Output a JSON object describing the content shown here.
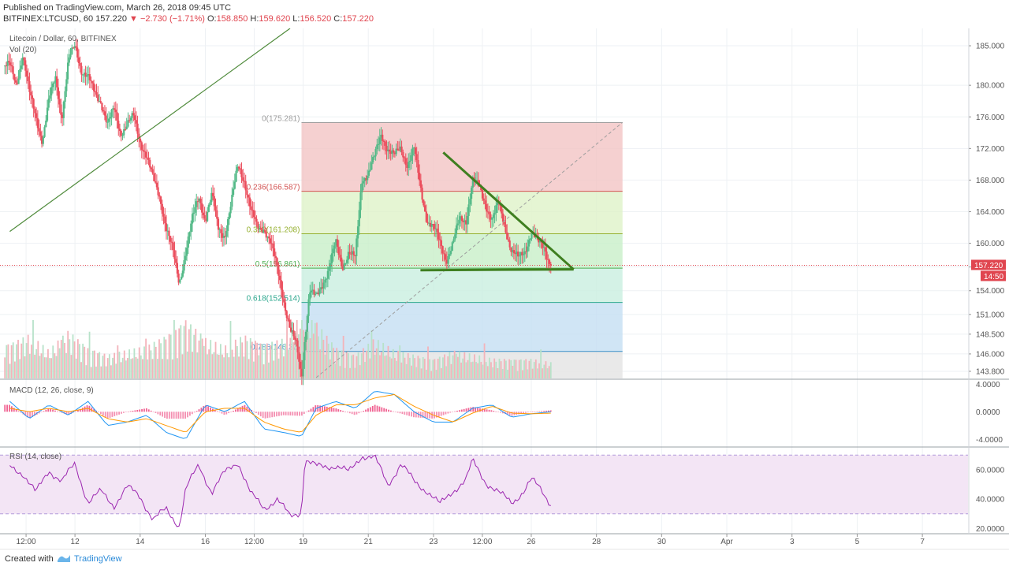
{
  "header": {
    "publish": "Published on TradingView.com, March 26, 2018 09:45 UTC",
    "symbol": "BITFINEX:LTCUSD, 60",
    "last": "157.220",
    "change_arrow": "▼",
    "change": "−2.730 (−1.71%)",
    "o_label": "O:",
    "o_value": "158.850",
    "h_label": "H:",
    "h_value": "159.620",
    "l_label": "L:",
    "l_value": "156.520",
    "c_label": "C:",
    "c_value": "157.220"
  },
  "footer": {
    "created": "Created with",
    "brand": "TradingView",
    "logo_icon": "tradingview-logo-icon"
  },
  "chart_data": {
    "type": "candlestick",
    "legend": {
      "main": "Litecoin / Dollar, 60, BITFINEX",
      "volume": "Vol (20)",
      "macd": "MACD (12, 26, close, 9)",
      "rsi": "RSI (14, close)"
    },
    "price_axis_ticks": [
      "185.000",
      "180.000",
      "176.000",
      "172.000",
      "168.000",
      "164.000",
      "160.000",
      "157.000",
      "154.000",
      "151.000",
      "148.500",
      "146.000",
      "143.800"
    ],
    "price_range": [
      142.9,
      187.2
    ],
    "last_price_label": "157.220",
    "countdown_label": "14:50",
    "time_axis_labels": [
      {
        "label": "12:00",
        "day": 10.5
      },
      {
        "label": "12",
        "day": 12
      },
      {
        "label": "14",
        "day": 14
      },
      {
        "label": "16",
        "day": 16
      },
      {
        "label": "12:00",
        "day": 17.5
      },
      {
        "label": "19",
        "day": 19
      },
      {
        "label": "21",
        "day": 21
      },
      {
        "label": "23",
        "day": 23
      },
      {
        "label": "12:00",
        "day": 24.5
      },
      {
        "label": "26",
        "day": 26
      },
      {
        "label": "28",
        "day": 28
      },
      {
        "label": "30",
        "day": 30
      },
      {
        "label": "Apr",
        "day": 32
      },
      {
        "label": "3",
        "day": 34
      },
      {
        "label": "5",
        "day": 36
      },
      {
        "label": "7",
        "day": 38
      }
    ],
    "price_path": [
      [
        10.0,
        182.5
      ],
      [
        10.2,
        180
      ],
      [
        10.4,
        184
      ],
      [
        10.6,
        179
      ],
      [
        10.8,
        176
      ],
      [
        11.0,
        173
      ],
      [
        11.2,
        178
      ],
      [
        11.4,
        181
      ],
      [
        11.6,
        176
      ],
      [
        11.8,
        183
      ],
      [
        12.0,
        185
      ],
      [
        12.2,
        182
      ],
      [
        12.4,
        181
      ],
      [
        12.6,
        179
      ],
      [
        12.8,
        178
      ],
      [
        13.0,
        175
      ],
      [
        13.2,
        177
      ],
      [
        13.4,
        174
      ],
      [
        13.6,
        175
      ],
      [
        13.8,
        176
      ],
      [
        14.0,
        173
      ],
      [
        14.2,
        171
      ],
      [
        14.4,
        168
      ],
      [
        14.6,
        166
      ],
      [
        14.8,
        162
      ],
      [
        15.0,
        159
      ],
      [
        15.2,
        155
      ],
      [
        15.4,
        159
      ],
      [
        15.6,
        163
      ],
      [
        15.8,
        166
      ],
      [
        16.0,
        163
      ],
      [
        16.2,
        166
      ],
      [
        16.4,
        162
      ],
      [
        16.6,
        161
      ],
      [
        16.8,
        165
      ],
      [
        17.0,
        170
      ],
      [
        17.2,
        168
      ],
      [
        17.4,
        164
      ],
      [
        17.6,
        162
      ],
      [
        17.8,
        162
      ],
      [
        18.0,
        160
      ],
      [
        18.2,
        157
      ],
      [
        18.4,
        153
      ],
      [
        18.6,
        149
      ],
      [
        18.8,
        147
      ],
      [
        18.95,
        143.2
      ],
      [
        19.05,
        148
      ],
      [
        19.2,
        154
      ],
      [
        19.4,
        153
      ],
      [
        19.6,
        155
      ],
      [
        19.8,
        157
      ],
      [
        20.0,
        160
      ],
      [
        20.2,
        157
      ],
      [
        20.4,
        159
      ],
      [
        20.6,
        158
      ],
      [
        20.8,
        168
      ],
      [
        21.0,
        169
      ],
      [
        21.2,
        171
      ],
      [
        21.4,
        173.8
      ],
      [
        21.6,
        172
      ],
      [
        21.8,
        171
      ],
      [
        22.0,
        172
      ],
      [
        22.2,
        170
      ],
      [
        22.4,
        172
      ],
      [
        22.6,
        167
      ],
      [
        22.8,
        163
      ],
      [
        23.0,
        162
      ],
      [
        23.2,
        160
      ],
      [
        23.4,
        158
      ],
      [
        23.6,
        160
      ],
      [
        23.8,
        163
      ],
      [
        24.0,
        163
      ],
      [
        24.2,
        168
      ],
      [
        24.4,
        167
      ],
      [
        24.6,
        165
      ],
      [
        24.8,
        163
      ],
      [
        25.0,
        165
      ],
      [
        25.2,
        162
      ],
      [
        25.4,
        159
      ],
      [
        25.6,
        158
      ],
      [
        25.8,
        159
      ],
      [
        26.0,
        161.5
      ],
      [
        26.2,
        160
      ],
      [
        26.4,
        159.5
      ],
      [
        26.6,
        157.22
      ]
    ],
    "volume_path": [
      [
        10.0,
        0.45
      ],
      [
        10.6,
        0.55
      ],
      [
        11.2,
        0.35
      ],
      [
        11.8,
        0.6
      ],
      [
        12.4,
        0.4
      ],
      [
        13.0,
        0.3
      ],
      [
        13.6,
        0.35
      ],
      [
        14.2,
        0.4
      ],
      [
        14.8,
        0.55
      ],
      [
        15.4,
        0.75
      ],
      [
        16.0,
        0.5
      ],
      [
        16.6,
        0.4
      ],
      [
        17.2,
        0.55
      ],
      [
        17.8,
        0.45
      ],
      [
        18.4,
        0.5
      ],
      [
        18.95,
        0.9
      ],
      [
        19.4,
        0.7
      ],
      [
        20.0,
        0.4
      ],
      [
        20.6,
        0.3
      ],
      [
        21.2,
        0.5
      ],
      [
        21.8,
        0.35
      ],
      [
        22.4,
        0.3
      ],
      [
        23.0,
        0.25
      ],
      [
        23.6,
        0.35
      ],
      [
        24.2,
        0.3
      ],
      [
        24.8,
        0.25
      ],
      [
        25.4,
        0.25
      ],
      [
        26.0,
        0.25
      ],
      [
        26.6,
        0.2
      ]
    ],
    "fibonacci": {
      "start_day": 18.95,
      "end_day": 28.8,
      "levels": [
        {
          "ratio": "0",
          "value": "(175.281)",
          "price": 175.281,
          "line": "#9e9e9e",
          "fill": "#f3c4c4"
        },
        {
          "ratio": "0.236",
          "value": "(166.587)",
          "price": 166.587,
          "line": "#d35454",
          "fill": "#dff2c8"
        },
        {
          "ratio": "0.382",
          "value": "(161.208)",
          "price": 161.208,
          "line": "#95b02f",
          "fill": "#c8efc8"
        },
        {
          "ratio": "0.5",
          "value": "(156.861)",
          "price": 156.861,
          "line": "#4caf50",
          "fill": "#c9efe0"
        },
        {
          "ratio": "0.618",
          "value": "(152.514)",
          "price": 152.514,
          "line": "#2ea88f",
          "fill": "#c4def2"
        },
        {
          "ratio": "0.786",
          "value": "(146.32)",
          "price": 146.32,
          "line": "#3b8fc8",
          "fill": "#e4e4e4"
        }
      ]
    },
    "trendlines": [
      {
        "name": "rising-channel-line",
        "from": [
          10.0,
          161.5
        ],
        "to": [
          18.6,
          187.2
        ],
        "color": "#4e8a3a"
      },
      {
        "name": "fib-diagonal",
        "from": [
          19.4,
          143.0
        ],
        "to": [
          28.8,
          175.3
        ],
        "color": "#9e9e9e",
        "dashed": true
      },
      {
        "name": "descending-resistance",
        "from": [
          23.3,
          171.5
        ],
        "to": [
          27.3,
          156.7
        ],
        "color": "#3f7f20"
      },
      {
        "name": "horizontal-support",
        "from": [
          22.6,
          156.6
        ],
        "to": [
          27.3,
          156.7
        ],
        "color": "#3f7f20"
      }
    ],
    "macd": {
      "axis_ticks": [
        "4.0000",
        "0.0000",
        "-4.0000"
      ],
      "range": [
        -5.0,
        4.6
      ],
      "macd_path": [
        [
          10.0,
          1.5
        ],
        [
          10.6,
          -1
        ],
        [
          11.2,
          1
        ],
        [
          11.8,
          -0.5
        ],
        [
          12.4,
          1.5
        ],
        [
          13.0,
          -2
        ],
        [
          13.6,
          -1.5
        ],
        [
          14.2,
          -0.5
        ],
        [
          14.8,
          -3
        ],
        [
          15.4,
          -4
        ],
        [
          16.0,
          1
        ],
        [
          16.6,
          0
        ],
        [
          17.2,
          1.5
        ],
        [
          17.8,
          -2.5
        ],
        [
          18.4,
          -3
        ],
        [
          18.95,
          -3.6
        ],
        [
          19.4,
          0.5
        ],
        [
          20.0,
          1.5
        ],
        [
          20.6,
          0.5
        ],
        [
          21.2,
          3
        ],
        [
          21.8,
          2.5
        ],
        [
          22.4,
          0
        ],
        [
          23.0,
          -1.5
        ],
        [
          23.6,
          -1.5
        ],
        [
          24.2,
          0.5
        ],
        [
          24.8,
          1
        ],
        [
          25.4,
          -0.8
        ],
        [
          26.0,
          -0.3
        ],
        [
          26.6,
          0
        ]
      ],
      "signal_path": [
        [
          10.0,
          0.5
        ],
        [
          10.6,
          0
        ],
        [
          11.2,
          0.5
        ],
        [
          11.8,
          0
        ],
        [
          12.4,
          0.5
        ],
        [
          13.0,
          -1
        ],
        [
          13.6,
          -1.5
        ],
        [
          14.2,
          -1
        ],
        [
          14.8,
          -2
        ],
        [
          15.4,
          -3
        ],
        [
          16.0,
          0
        ],
        [
          16.6,
          0.5
        ],
        [
          17.2,
          0.5
        ],
        [
          17.8,
          -1.5
        ],
        [
          18.4,
          -2.5
        ],
        [
          18.95,
          -3
        ],
        [
          19.4,
          -0.5
        ],
        [
          20.0,
          1
        ],
        [
          20.6,
          1
        ],
        [
          21.2,
          2
        ],
        [
          21.8,
          2.5
        ],
        [
          22.4,
          0.8
        ],
        [
          23.0,
          -0.5
        ],
        [
          23.6,
          -1.5
        ],
        [
          24.2,
          -0.2
        ],
        [
          24.8,
          0.8
        ],
        [
          25.4,
          -0.2
        ],
        [
          26.0,
          -0.3
        ],
        [
          26.6,
          -0.2
        ]
      ]
    },
    "rsi": {
      "axis_ticks": [
        "60.0000",
        "40.0000",
        "20.0000"
      ],
      "range": [
        17,
        75
      ],
      "upper_band": 70,
      "lower_band": 30,
      "rsi_path": [
        [
          10.0,
          62
        ],
        [
          10.4,
          58
        ],
        [
          10.8,
          44
        ],
        [
          11.2,
          60
        ],
        [
          11.6,
          52
        ],
        [
          12.0,
          64
        ],
        [
          12.4,
          38
        ],
        [
          12.8,
          45
        ],
        [
          13.2,
          36
        ],
        [
          13.6,
          48
        ],
        [
          14.0,
          42
        ],
        [
          14.4,
          26
        ],
        [
          14.8,
          33
        ],
        [
          15.2,
          22
        ],
        [
          15.4,
          47
        ],
        [
          15.8,
          63
        ],
        [
          16.2,
          45
        ],
        [
          16.6,
          58
        ],
        [
          17.0,
          66
        ],
        [
          17.4,
          43
        ],
        [
          17.8,
          34
        ],
        [
          18.2,
          40
        ],
        [
          18.6,
          28
        ],
        [
          18.95,
          32
        ],
        [
          19.05,
          67
        ],
        [
          19.4,
          62
        ],
        [
          20.0,
          63
        ],
        [
          20.4,
          58
        ],
        [
          20.8,
          70
        ],
        [
          21.2,
          68
        ],
        [
          21.6,
          50
        ],
        [
          22.0,
          64
        ],
        [
          22.4,
          52
        ],
        [
          22.8,
          46
        ],
        [
          23.2,
          36
        ],
        [
          23.6,
          46
        ],
        [
          24.0,
          53
        ],
        [
          24.2,
          66
        ],
        [
          24.6,
          52
        ],
        [
          25.0,
          44
        ],
        [
          25.4,
          38
        ],
        [
          25.8,
          46
        ],
        [
          26.0,
          53
        ],
        [
          26.3,
          47
        ],
        [
          26.6,
          37
        ]
      ]
    },
    "colors": {
      "up": "#53b987",
      "down": "#eb4d5c",
      "macd": "#2196f3",
      "signal": "#ff9800",
      "rsi": "#9c27b0",
      "rsi_band": "#f3e5f5",
      "last_price": "#e0454f"
    }
  }
}
